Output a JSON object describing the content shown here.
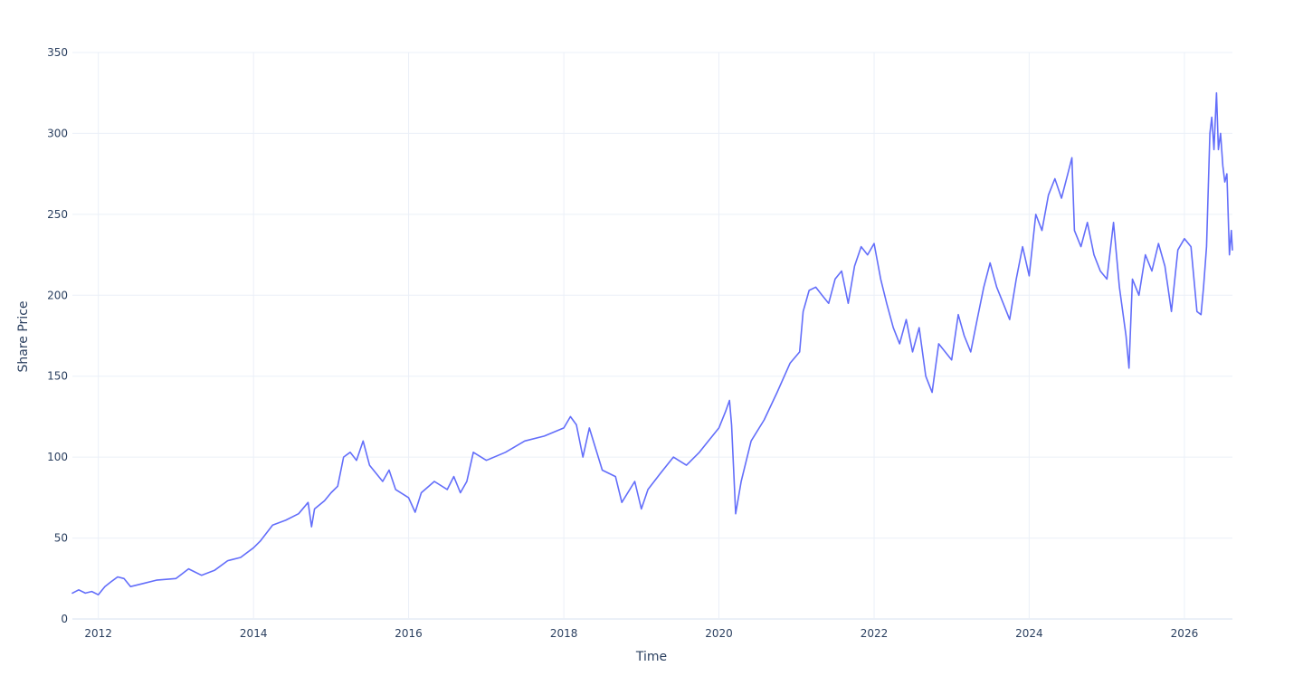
{
  "colors": {
    "series": "#636efa",
    "grid": "#ebf0f8",
    "text": "#2a3f5f",
    "background": "#ffffff"
  },
  "chart_data": {
    "type": "line",
    "title": "",
    "xlabel": "Time",
    "ylabel": "Share Price",
    "grid": true,
    "legend": "none",
    "xlim": [
      "2011-09-01",
      "2026-08-15"
    ],
    "ylim": [
      0,
      350
    ],
    "x_ticks": [
      "2012",
      "2014",
      "2016",
      "2018",
      "2020",
      "2022",
      "2024",
      "2026"
    ],
    "y_ticks": [
      "0",
      "50",
      "100",
      "150",
      "200",
      "250",
      "300",
      "350"
    ],
    "series": [
      {
        "x": [
          "2011-09-01",
          "2011-10-01",
          "2011-11-01",
          "2011-12-01",
          "2012-01-01",
          "2012-02-01",
          "2012-03-01",
          "2012-04-01",
          "2012-05-01",
          "2012-06-01",
          "2012-08-01",
          "2012-10-01",
          "2013-01-01",
          "2013-03-01",
          "2013-05-01",
          "2013-07-01",
          "2013-09-01",
          "2013-11-01",
          "2014-01-01",
          "2014-02-01",
          "2014-04-01",
          "2014-06-01",
          "2014-08-01",
          "2014-09-15",
          "2014-10-01",
          "2014-10-15",
          "2014-12-01",
          "2015-01-01",
          "2015-02-01",
          "2015-03-01",
          "2015-04-01",
          "2015-05-01",
          "2015-06-01",
          "2015-07-01",
          "2015-08-01",
          "2015-09-01",
          "2015-10-01",
          "2015-11-01",
          "2016-01-01",
          "2016-02-01",
          "2016-03-01",
          "2016-05-01",
          "2016-07-01",
          "2016-08-01",
          "2016-09-01",
          "2016-10-01",
          "2016-11-01",
          "2017-01-01",
          "2017-04-01",
          "2017-07-01",
          "2017-10-01",
          "2018-01-01",
          "2018-02-01",
          "2018-03-01",
          "2018-04-01",
          "2018-05-01",
          "2018-07-01",
          "2018-09-01",
          "2018-10-01",
          "2018-12-01",
          "2019-01-01",
          "2019-02-01",
          "2019-04-01",
          "2019-06-01",
          "2019-08-01",
          "2019-10-01",
          "2019-11-01",
          "2020-01-01",
          "2020-02-01",
          "2020-02-20",
          "2020-03-01",
          "2020-03-20",
          "2020-04-15",
          "2020-06-01",
          "2020-08-01",
          "2020-10-01",
          "2020-12-01",
          "2021-01-15",
          "2021-02-01",
          "2021-03-01",
          "2021-04-01",
          "2021-05-01",
          "2021-06-01",
          "2021-07-01",
          "2021-08-01",
          "2021-09-01",
          "2021-10-01",
          "2021-11-01",
          "2021-12-01",
          "2022-01-01",
          "2022-02-01",
          "2022-03-01",
          "2022-04-01",
          "2022-05-01",
          "2022-06-01",
          "2022-07-01",
          "2022-08-01",
          "2022-09-01",
          "2022-10-01",
          "2022-11-01",
          "2023-01-01",
          "2023-02-01",
          "2023-03-01",
          "2023-04-01",
          "2023-05-01",
          "2023-06-01",
          "2023-07-01",
          "2023-08-01",
          "2023-09-01",
          "2023-10-01",
          "2023-11-01",
          "2023-12-01",
          "2024-01-01",
          "2024-02-01",
          "2024-03-01",
          "2024-04-01",
          "2024-05-01",
          "2024-06-01",
          "2024-07-01",
          "2024-07-20",
          "2024-08-01",
          "2024-09-01",
          "2024-10-01",
          "2024-11-01",
          "2024-12-01",
          "2025-01-01",
          "2025-02-01",
          "2025-03-01",
          "2025-04-01",
          "2025-04-15",
          "2025-05-01",
          "2025-06-01",
          "2025-07-01",
          "2025-08-01",
          "2025-09-01",
          "2025-10-01",
          "2025-11-01",
          "2025-12-01",
          "2026-01-01",
          "2026-02-01",
          "2026-03-01",
          "2026-03-20",
          "2026-04-01",
          "2026-04-15",
          "2026-05-01",
          "2026-05-10",
          "2026-05-20",
          "2026-06-01",
          "2026-06-10",
          "2026-06-20",
          "2026-07-01",
          "2026-07-10",
          "2026-07-20",
          "2026-08-01",
          "2026-08-10",
          "2026-08-15"
        ],
        "y": [
          16,
          18,
          16,
          17,
          15,
          20,
          23,
          26,
          25,
          20,
          22,
          24,
          25,
          31,
          27,
          30,
          36,
          38,
          44,
          48,
          58,
          61,
          65,
          72,
          57,
          68,
          73,
          78,
          82,
          100,
          103,
          98,
          110,
          95,
          90,
          85,
          92,
          80,
          75,
          66,
          78,
          85,
          80,
          88,
          78,
          85,
          103,
          98,
          103,
          110,
          113,
          118,
          125,
          120,
          100,
          118,
          92,
          88,
          72,
          85,
          68,
          80,
          90,
          100,
          95,
          103,
          108,
          118,
          128,
          135,
          120,
          65,
          85,
          110,
          123,
          140,
          158,
          165,
          190,
          203,
          205,
          200,
          195,
          210,
          215,
          195,
          218,
          230,
          225,
          232,
          210,
          195,
          180,
          170,
          185,
          165,
          180,
          150,
          140,
          170,
          160,
          188,
          175,
          165,
          185,
          205,
          220,
          205,
          195,
          185,
          210,
          230,
          212,
          250,
          240,
          262,
          272,
          260,
          275,
          285,
          240,
          230,
          245,
          225,
          215,
          210,
          245,
          205,
          175,
          155,
          210,
          200,
          225,
          215,
          232,
          218,
          190,
          228,
          235,
          230,
          190,
          188,
          205,
          230,
          300,
          310,
          290,
          325,
          290,
          300,
          280,
          270,
          275,
          225,
          240,
          228
        ]
      }
    ]
  }
}
